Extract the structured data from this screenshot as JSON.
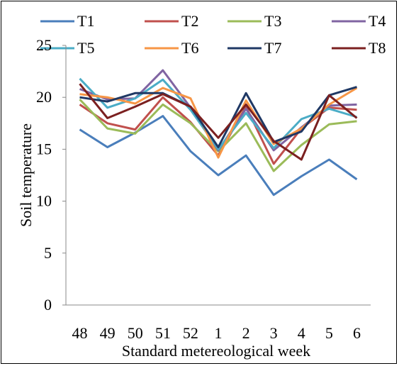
{
  "chart_data": {
    "type": "line",
    "xlabel": "Standard metereological  week",
    "ylabel": "Soil temperature",
    "categories": [
      "48",
      "49",
      "50",
      "51",
      "52",
      "1",
      "2",
      "3",
      "4",
      "5",
      "6"
    ],
    "ylim": [
      0,
      25
    ],
    "yticks": [
      0,
      5,
      10,
      15,
      20,
      25
    ],
    "grid": false,
    "legend_position": "top",
    "series": [
      {
        "name": "T1",
        "color": "#4a7ebb",
        "values": [
          16.9,
          15.2,
          16.6,
          18.2,
          14.8,
          12.5,
          14.4,
          10.6,
          12.4,
          14.0,
          12.1
        ]
      },
      {
        "name": "T2",
        "color": "#c0504d",
        "values": [
          19.3,
          17.5,
          16.9,
          20.0,
          17.6,
          14.4,
          19.1,
          13.6,
          17.0,
          19.0,
          18.8
        ]
      },
      {
        "name": "T3",
        "color": "#9bbb59",
        "values": [
          19.8,
          17.0,
          16.5,
          19.3,
          17.5,
          14.8,
          17.5,
          12.9,
          15.4,
          17.4,
          17.7
        ]
      },
      {
        "name": "T4",
        "color": "#8064a2",
        "values": [
          20.8,
          19.8,
          19.9,
          22.6,
          19.0,
          14.9,
          18.9,
          14.9,
          17.1,
          19.2,
          19.3
        ]
      },
      {
        "name": "T5",
        "color": "#4bacc6",
        "values": [
          21.8,
          19.0,
          19.9,
          21.7,
          18.8,
          15.0,
          18.5,
          15.1,
          17.9,
          18.9,
          18.1
        ]
      },
      {
        "name": "T6",
        "color": "#f79646",
        "values": [
          20.3,
          20.0,
          19.4,
          20.9,
          19.9,
          14.2,
          19.7,
          15.5,
          17.0,
          19.3,
          20.9
        ]
      },
      {
        "name": "T7",
        "color": "#1f3864",
        "values": [
          20.0,
          19.6,
          20.4,
          20.4,
          19.1,
          15.2,
          20.4,
          15.7,
          16.7,
          20.2,
          21.0
        ]
      },
      {
        "name": "T8",
        "color": "#7b2020",
        "values": [
          21.3,
          18.0,
          19.1,
          20.3,
          19.1,
          16.1,
          19.3,
          15.8,
          14.0,
          20.2,
          18.0
        ]
      }
    ]
  }
}
